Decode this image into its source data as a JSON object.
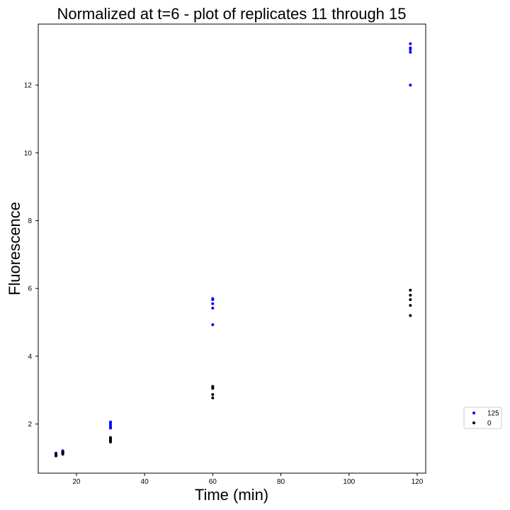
{
  "chart_data": {
    "type": "scatter",
    "title": "Normalized at t=6 - plot of replicates 11 through 15",
    "xlabel": "Time (min)",
    "ylabel": "Fluorescence",
    "xlim": [
      8.8,
      122.5
    ],
    "ylim": [
      0.55,
      13.8
    ],
    "xticks": [
      20,
      40,
      60,
      80,
      100,
      120
    ],
    "yticks": [
      2,
      4,
      6,
      8,
      10,
      12
    ],
    "grid": false,
    "legend": "right",
    "series": [
      {
        "name": "125",
        "color": "#0000ff",
        "points": [
          [
            14,
            1.08
          ],
          [
            14,
            1.1
          ],
          [
            14,
            1.12
          ],
          [
            14,
            1.13
          ],
          [
            14,
            1.14
          ],
          [
            16,
            1.14
          ],
          [
            16,
            1.16
          ],
          [
            16,
            1.18
          ],
          [
            16,
            1.2
          ],
          [
            16,
            1.21
          ],
          [
            30,
            1.88
          ],
          [
            30,
            1.92
          ],
          [
            30,
            1.97
          ],
          [
            30,
            2.03
          ],
          [
            30,
            2.06
          ],
          [
            60,
            4.93
          ],
          [
            60,
            5.42
          ],
          [
            60,
            5.55
          ],
          [
            60,
            5.67
          ],
          [
            60,
            5.7
          ],
          [
            118,
            12.0
          ],
          [
            118,
            12.97
          ],
          [
            118,
            13.05
          ],
          [
            118,
            13.1
          ],
          [
            118,
            13.22
          ]
        ]
      },
      {
        "name": "0",
        "color": "#000000",
        "points": [
          [
            14,
            1.06
          ],
          [
            14,
            1.08
          ],
          [
            14,
            1.1
          ],
          [
            14,
            1.11
          ],
          [
            14,
            1.12
          ],
          [
            16,
            1.11
          ],
          [
            16,
            1.13
          ],
          [
            16,
            1.15
          ],
          [
            16,
            1.16
          ],
          [
            16,
            1.17
          ],
          [
            30,
            1.47
          ],
          [
            30,
            1.51
          ],
          [
            30,
            1.53
          ],
          [
            30,
            1.57
          ],
          [
            30,
            1.6
          ],
          [
            60,
            2.77
          ],
          [
            60,
            2.87
          ],
          [
            60,
            3.05
          ],
          [
            60,
            3.08
          ],
          [
            60,
            3.11
          ],
          [
            118,
            5.2
          ],
          [
            118,
            5.5
          ],
          [
            118,
            5.67
          ],
          [
            118,
            5.8
          ],
          [
            118,
            5.95
          ]
        ]
      }
    ]
  }
}
